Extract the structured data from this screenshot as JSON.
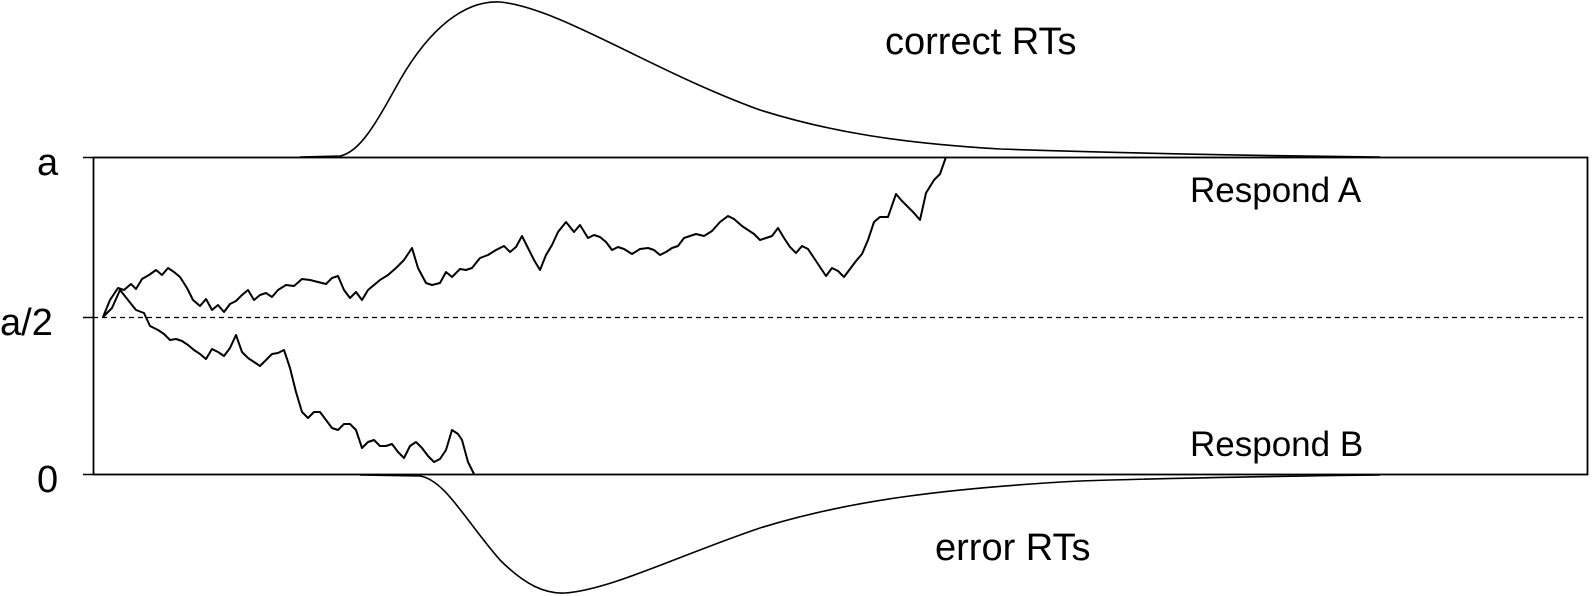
{
  "diagram": {
    "y_axis": {
      "labels": [
        "a",
        "a/2",
        "0"
      ]
    },
    "labels": {
      "respond_a": "Respond A",
      "respond_b": "Respond B",
      "correct_rts": "correct RTs",
      "error_rts": "error RTs"
    },
    "colors": {
      "line": "#000000",
      "background": "#ffffff"
    }
  }
}
